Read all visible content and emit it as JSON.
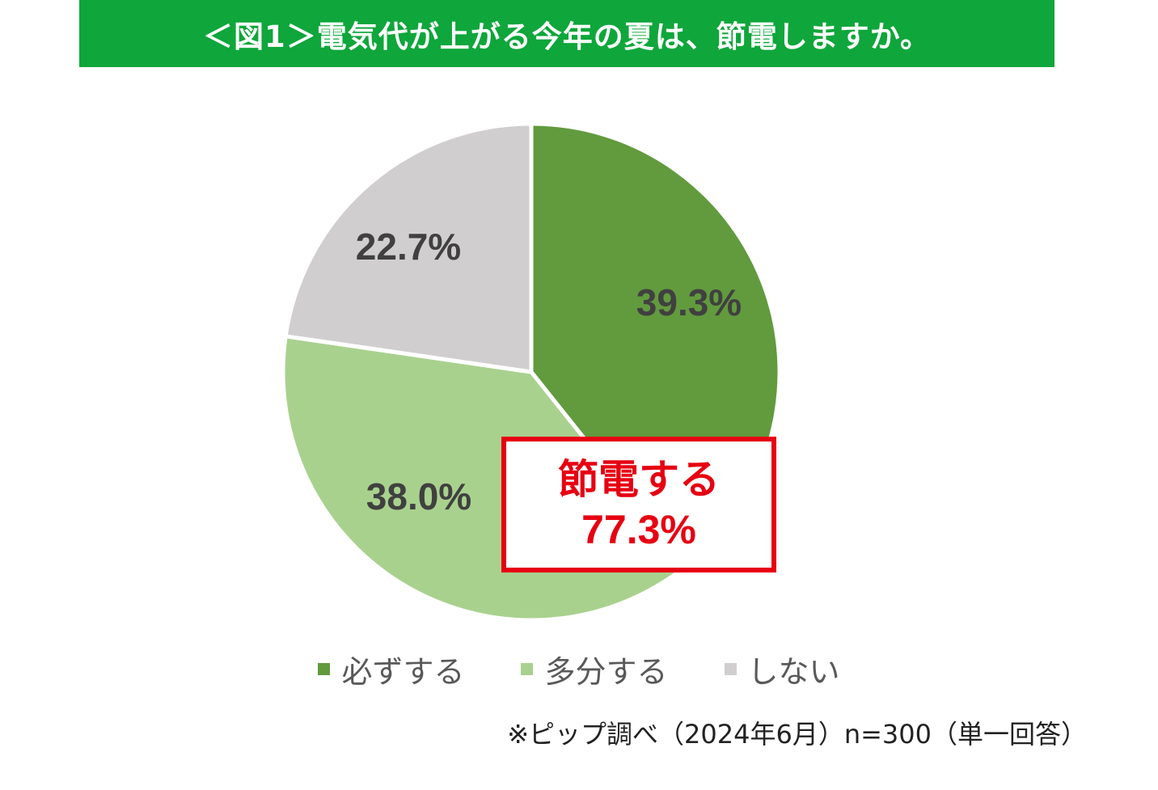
{
  "header": {
    "title": "＜図1＞電気代が上がる今年の夏は、節電しますか。"
  },
  "chart_data": {
    "type": "pie",
    "title": "",
    "slices": [
      {
        "name": "必ずする",
        "value": 39.3,
        "label": "39.3%",
        "color": "#629a3e"
      },
      {
        "name": "多分する",
        "value": 38.0,
        "label": "38.0%",
        "color": "#a9d18e"
      },
      {
        "name": "しない",
        "value": 22.7,
        "label": "22.7%",
        "color": "#d0cece"
      }
    ],
    "start": "12 o'clock",
    "direction": "clockwise",
    "legend_position": "bottom",
    "annotation": {
      "line1": "節電する",
      "line2": "77.3%",
      "color": "#e60012"
    }
  },
  "source_note": "※ピップ調べ（2024年6月）n=300（単一回答）"
}
